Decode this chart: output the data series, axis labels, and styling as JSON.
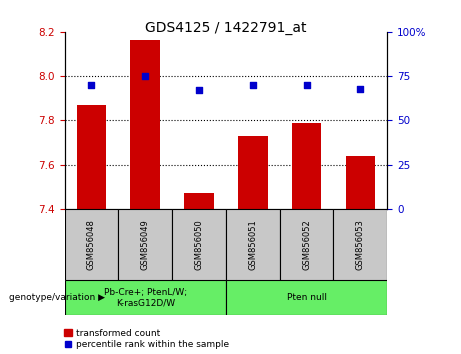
{
  "title": "GDS4125 / 1422791_at",
  "samples": [
    "GSM856048",
    "GSM856049",
    "GSM856050",
    "GSM856051",
    "GSM856052",
    "GSM856053"
  ],
  "transformed_counts": [
    7.87,
    8.165,
    7.47,
    7.73,
    7.79,
    7.64
  ],
  "percentile_ranks": [
    70,
    75,
    67,
    70,
    70,
    68
  ],
  "ylim_left": [
    7.4,
    8.2
  ],
  "ylim_right": [
    0,
    100
  ],
  "yticks_left": [
    7.4,
    7.6,
    7.8,
    8.0,
    8.2
  ],
  "yticks_right": [
    0,
    25,
    50,
    75,
    100
  ],
  "bar_color": "#cc0000",
  "dot_color": "#0000cc",
  "bar_bottom": 7.4,
  "groups": [
    {
      "label": "Pb-Cre+; PtenL/W;\nK-rasG12D/W",
      "samples_idx": [
        0,
        1,
        2
      ],
      "color": "#66ee66"
    },
    {
      "label": "Pten null",
      "samples_idx": [
        3,
        4,
        5
      ],
      "color": "#66ee66"
    }
  ],
  "group_label": "genotype/variation",
  "legend_bar_label": "transformed count",
  "legend_dot_label": "percentile rank within the sample",
  "gridline_color": "#000000",
  "tick_label_color_left": "#cc0000",
  "tick_label_color_right": "#0000cc",
  "sample_box_color": "#c8c8c8",
  "bar_width": 0.55
}
